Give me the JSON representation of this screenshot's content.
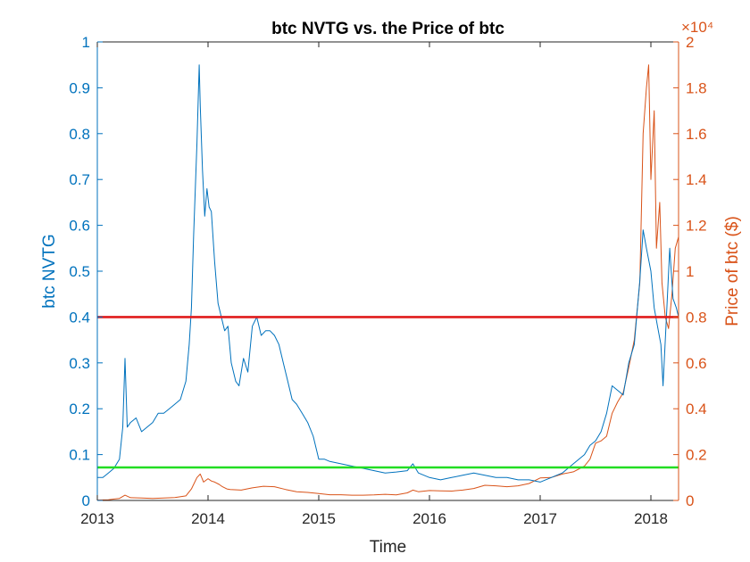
{
  "chart_data": {
    "type": "line",
    "title": "btc NVTG vs. the Price of btc",
    "xlabel": "Time",
    "ylabel_left": "btc NVTG",
    "ylabel_right": "Price of btc ($)",
    "right_axis_exponent": "×10⁴",
    "xlim": [
      2013.0,
      2018.25
    ],
    "ylim_left": [
      0,
      1
    ],
    "ylim_right": [
      0,
      20000
    ],
    "x_ticks": [
      "2013",
      "2014",
      "2015",
      "2016",
      "2017",
      "2018"
    ],
    "x_tick_values": [
      2013,
      2014,
      2015,
      2016,
      2017,
      2018
    ],
    "y_left_ticks": [
      "0",
      "0.1",
      "0.2",
      "0.3",
      "0.4",
      "0.5",
      "0.6",
      "0.7",
      "0.8",
      "0.9",
      "1"
    ],
    "y_left_tick_values": [
      0,
      0.1,
      0.2,
      0.3,
      0.4,
      0.5,
      0.6,
      0.7,
      0.8,
      0.9,
      1
    ],
    "y_right_ticks": [
      "0",
      "0.2",
      "0.4",
      "0.6",
      "0.8",
      "1",
      "1.2",
      "1.4",
      "1.6",
      "1.8",
      "2"
    ],
    "y_right_tick_values": [
      0,
      2000,
      4000,
      6000,
      8000,
      10000,
      12000,
      14000,
      16000,
      18000,
      20000
    ],
    "grid": false,
    "colors": {
      "nvtg": "#0072BD",
      "price": "#D95319",
      "upper_threshold": "#E11B1B",
      "lower_threshold": "#22DD22",
      "axis": "#262626"
    },
    "thresholds": [
      {
        "axis": "left",
        "value": 0.4,
        "color": "#E11B1B"
      },
      {
        "axis": "left",
        "value": 0.072,
        "color": "#22DD22"
      }
    ],
    "series": [
      {
        "axis": "left",
        "color": "#0072BD",
        "x": [
          2013.0,
          2013.05,
          2013.1,
          2013.15,
          2013.2,
          2013.23,
          2013.25,
          2013.27,
          2013.3,
          2013.35,
          2013.4,
          2013.45,
          2013.5,
          2013.55,
          2013.6,
          2013.65,
          2013.7,
          2013.75,
          2013.8,
          2013.83,
          2013.85,
          2013.87,
          2013.9,
          2013.92,
          2013.93,
          2013.95,
          2013.97,
          2013.99,
          2014.01,
          2014.03,
          2014.06,
          2014.09,
          2014.12,
          2014.15,
          2014.18,
          2014.21,
          2014.25,
          2014.28,
          2014.32,
          2014.36,
          2014.4,
          2014.44,
          2014.48,
          2014.52,
          2014.56,
          2014.6,
          2014.64,
          2014.68,
          2014.72,
          2014.76,
          2014.8,
          2014.85,
          2014.9,
          2014.95,
          2015.0,
          2015.05,
          2015.1,
          2015.2,
          2015.3,
          2015.4,
          2015.5,
          2015.6,
          2015.7,
          2015.8,
          2015.85,
          2015.9,
          2016.0,
          2016.1,
          2016.2,
          2016.3,
          2016.4,
          2016.5,
          2016.6,
          2016.7,
          2016.8,
          2016.9,
          2017.0,
          2017.1,
          2017.2,
          2017.3,
          2017.4,
          2017.45,
          2017.5,
          2017.55,
          2017.6,
          2017.65,
          2017.7,
          2017.75,
          2017.8,
          2017.85,
          2017.9,
          2017.93,
          2017.96,
          2018.0,
          2018.03,
          2018.06,
          2018.09,
          2018.11,
          2018.14,
          2018.17,
          2018.2,
          2018.23,
          2018.25
        ],
        "y": [
          0.05,
          0.05,
          0.06,
          0.07,
          0.09,
          0.16,
          0.31,
          0.16,
          0.17,
          0.18,
          0.15,
          0.16,
          0.17,
          0.19,
          0.19,
          0.2,
          0.21,
          0.22,
          0.26,
          0.34,
          0.42,
          0.58,
          0.78,
          0.95,
          0.86,
          0.72,
          0.62,
          0.68,
          0.64,
          0.63,
          0.52,
          0.43,
          0.4,
          0.37,
          0.38,
          0.3,
          0.26,
          0.25,
          0.31,
          0.28,
          0.38,
          0.4,
          0.36,
          0.37,
          0.37,
          0.36,
          0.34,
          0.3,
          0.26,
          0.22,
          0.21,
          0.19,
          0.17,
          0.14,
          0.09,
          0.09,
          0.085,
          0.08,
          0.075,
          0.07,
          0.065,
          0.06,
          0.062,
          0.065,
          0.08,
          0.06,
          0.05,
          0.045,
          0.05,
          0.055,
          0.06,
          0.055,
          0.05,
          0.05,
          0.045,
          0.045,
          0.04,
          0.05,
          0.06,
          0.08,
          0.1,
          0.12,
          0.13,
          0.15,
          0.19,
          0.25,
          0.24,
          0.23,
          0.3,
          0.34,
          0.48,
          0.59,
          0.55,
          0.5,
          0.42,
          0.38,
          0.34,
          0.25,
          0.4,
          0.55,
          0.44,
          0.42,
          0.4
        ]
      },
      {
        "axis": "right",
        "color": "#D95319",
        "x": [
          2013.0,
          2013.1,
          2013.2,
          2013.25,
          2013.3,
          2013.4,
          2013.5,
          2013.6,
          2013.7,
          2013.8,
          2013.85,
          2013.9,
          2013.93,
          2013.96,
          2014.0,
          2014.03,
          2014.06,
          2014.1,
          2014.13,
          2014.17,
          2014.2,
          2014.3,
          2014.4,
          2014.5,
          2014.6,
          2014.7,
          2014.8,
          2014.9,
          2015.0,
          2015.1,
          2015.2,
          2015.3,
          2015.4,
          2015.5,
          2015.6,
          2015.7,
          2015.8,
          2015.85,
          2015.9,
          2016.0,
          2016.1,
          2016.2,
          2016.3,
          2016.4,
          2016.5,
          2016.6,
          2016.7,
          2016.8,
          2016.9,
          2017.0,
          2017.1,
          2017.2,
          2017.3,
          2017.4,
          2017.45,
          2017.5,
          2017.55,
          2017.6,
          2017.65,
          2017.7,
          2017.75,
          2017.8,
          2017.85,
          2017.9,
          2017.93,
          2017.96,
          2017.98,
          2018.0,
          2018.03,
          2018.05,
          2018.08,
          2018.1,
          2018.13,
          2018.16,
          2018.19,
          2018.22,
          2018.25
        ],
        "y": [
          20,
          30,
          90,
          230,
          120,
          110,
          90,
          110,
          130,
          200,
          500,
          1000,
          1150,
          800,
          950,
          850,
          800,
          700,
          600,
          500,
          480,
          450,
          550,
          620,
          600,
          480,
          380,
          350,
          300,
          250,
          250,
          230,
          230,
          240,
          270,
          240,
          330,
          450,
          380,
          430,
          420,
          410,
          450,
          520,
          660,
          640,
          600,
          640,
          740,
          980,
          1000,
          1150,
          1250,
          1500,
          1800,
          2500,
          2600,
          2800,
          3800,
          4300,
          4700,
          5800,
          7000,
          9500,
          16000,
          18000,
          19000,
          14000,
          17000,
          11000,
          13000,
          9500,
          8000,
          7500,
          9000,
          11000,
          11500
        ]
      }
    ]
  }
}
